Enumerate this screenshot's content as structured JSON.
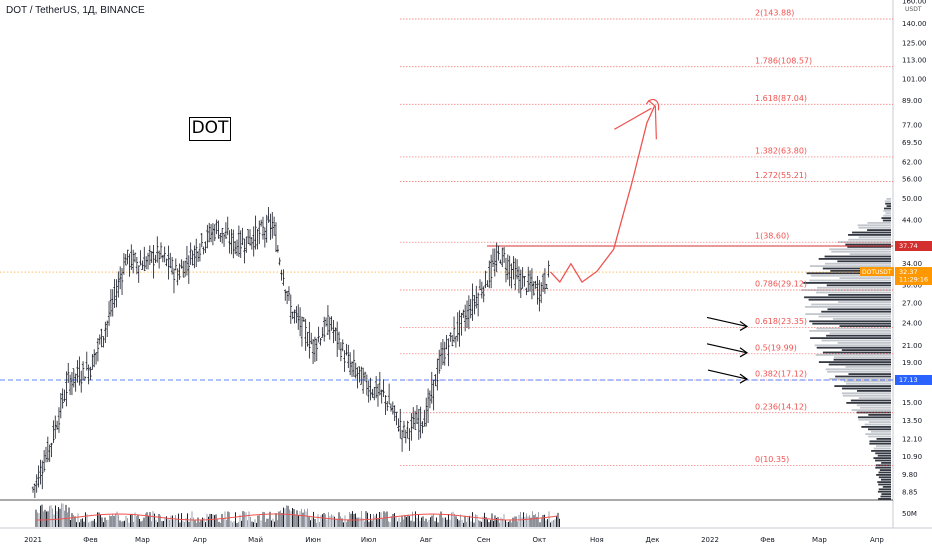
{
  "header": {
    "title": "DOT / TetherUS, 1Д, BINANCE"
  },
  "annotation": {
    "label": "DOT"
  },
  "axis": {
    "currency": "USDT",
    "price_ticks": [
      "160.00",
      "140.00",
      "125.00",
      "113.00",
      "101.00",
      "89.00",
      "77.00",
      "69.50",
      "62.00",
      "56.00",
      "50.00",
      "44.00",
      "38.00",
      "34.00",
      "30.00",
      "27.00",
      "24.00",
      "21.00",
      "19.00",
      "17.00",
      "15.00",
      "13.50",
      "12.10",
      "10.90",
      "9.80",
      "8.85"
    ],
    "volume_tick": "50M",
    "time_ticks": [
      "2021",
      "Фев",
      "Мар",
      "Апр",
      "Май",
      "Июн",
      "Июл",
      "Авг",
      "Сен",
      "Окт",
      "Ноя",
      "Дек",
      "2022",
      "Фев",
      "Мар",
      "Апр"
    ]
  },
  "badges": {
    "resistance": "37.74",
    "last_symbol": "DOTUSDT",
    "last_price": "32.37",
    "countdown": "11:29:16",
    "support": "17.13"
  },
  "chart_data": {
    "type": "ohlc",
    "symbol": "DOT / TetherUS",
    "interval": "1Д",
    "exchange": "BINANCE",
    "y_scale": "log",
    "ylim": [
      8.4,
      160
    ],
    "last_price": 32.37,
    "horizontal_levels": [
      37.74,
      17.13
    ],
    "fibonacci": [
      {
        "ratio": "0",
        "price": 10.35,
        "label": "0(10.35)"
      },
      {
        "ratio": "0.236",
        "price": 14.12,
        "label": "0.236(14.12)"
      },
      {
        "ratio": "0.382",
        "price": 17.12,
        "label": "0.382(17.12)"
      },
      {
        "ratio": "0.5",
        "price": 19.99,
        "label": "0.5(19.99)"
      },
      {
        "ratio": "0.618",
        "price": 23.35,
        "label": "0.618(23.35)"
      },
      {
        "ratio": "0.786",
        "price": 29.12,
        "label": "0.786(29.12)"
      },
      {
        "ratio": "1",
        "price": 38.6,
        "label": "1(38.60)"
      },
      {
        "ratio": "1.272",
        "price": 55.21,
        "label": "1.272(55.21)"
      },
      {
        "ratio": "1.382",
        "price": 63.8,
        "label": "1.382(63.80)"
      },
      {
        "ratio": "1.618",
        "price": 87.04,
        "label": "1.618(87.04)"
      },
      {
        "ratio": "1.786",
        "price": 108.57,
        "label": "1.786(108.57)"
      },
      {
        "ratio": "2",
        "price": 143.88,
        "label": "2(143.88)"
      }
    ],
    "price_path": {
      "dates": [
        "2021-01-01",
        "2021-01-10",
        "2021-01-20",
        "2021-02-01",
        "2021-02-10",
        "2021-02-20",
        "2021-03-01",
        "2021-03-10",
        "2021-03-20",
        "2021-04-01",
        "2021-04-10",
        "2021-04-20",
        "2021-05-01",
        "2021-05-10",
        "2021-05-20",
        "2021-06-01",
        "2021-06-10",
        "2021-06-20",
        "2021-07-01",
        "2021-07-10",
        "2021-07-20",
        "2021-08-01",
        "2021-08-10",
        "2021-08-20",
        "2021-09-01",
        "2021-09-10",
        "2021-09-20",
        "2021-10-01",
        "2021-10-07"
      ],
      "closes": [
        9.0,
        11.5,
        17.0,
        18.5,
        24.0,
        35.0,
        34.0,
        36.0,
        32.0,
        38.0,
        42.0,
        38.0,
        40.0,
        43.0,
        26.0,
        21.0,
        24.0,
        19.0,
        16.5,
        15.5,
        12.5,
        14.0,
        20.0,
        24.0,
        30.0,
        36.0,
        31.0,
        29.0,
        32.4
      ]
    },
    "projection": {
      "dates": [
        "2021-10-07",
        "2021-10-12",
        "2021-10-18",
        "2021-10-24",
        "2021-11-01",
        "2021-11-10",
        "2021-11-20",
        "2021-11-28",
        "2021-12-02"
      ],
      "prices": [
        32.4,
        30.5,
        34.0,
        30.5,
        32.5,
        37.0,
        55.0,
        78.0,
        86.0
      ]
    },
    "arrow_targets": [
      23.35,
      19.99,
      17.12
    ]
  },
  "colors": {
    "fib": "#ef5350",
    "projection": "#ef5350",
    "candle": "#131722",
    "support": "#2962ff",
    "resistance": "#d32f2f",
    "last_price": "#ff9800"
  }
}
